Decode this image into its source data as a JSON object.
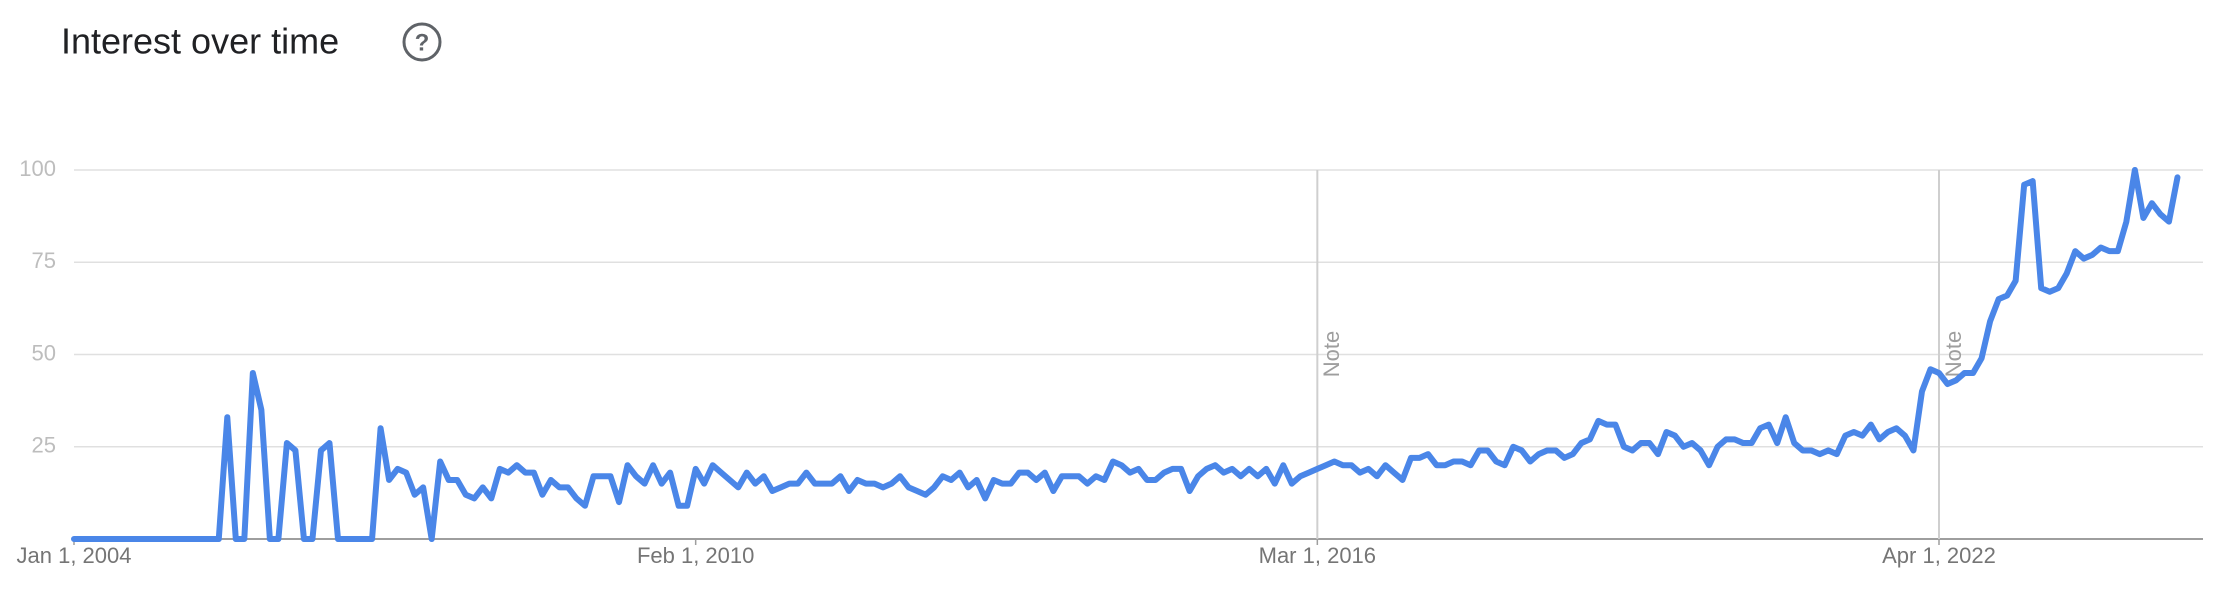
{
  "chart_data": {
    "type": "line",
    "title": "Interest over time",
    "color": "#4a86e8",
    "grid": true,
    "values": [
      0,
      0,
      0,
      0,
      0,
      0,
      0,
      0,
      0,
      0,
      0,
      0,
      0,
      0,
      0,
      0,
      0,
      0,
      33,
      0,
      0,
      45,
      35,
      0,
      0,
      26,
      24,
      0,
      0,
      24,
      26,
      0,
      0,
      0,
      0,
      0,
      30,
      16,
      19,
      18,
      12,
      14,
      0,
      21,
      16,
      16,
      12,
      11,
      14,
      11,
      19,
      18,
      20,
      18,
      18,
      12,
      16,
      14,
      14,
      11,
      9,
      17,
      17,
      17,
      10,
      20,
      17,
      15,
      20,
      15,
      18,
      9,
      9,
      19,
      15,
      20,
      18,
      16,
      14,
      18,
      15,
      17,
      13,
      14,
      15,
      15,
      18,
      15,
      15,
      15,
      17,
      13,
      16,
      15,
      15,
      14,
      15,
      17,
      14,
      13,
      12,
      14,
      17,
      16,
      18,
      14,
      16,
      11,
      16,
      15,
      15,
      18,
      18,
      16,
      18,
      13,
      17,
      17,
      17,
      15,
      17,
      16,
      21,
      20,
      18,
      19,
      16,
      16,
      18,
      19,
      19,
      13,
      17,
      19,
      20,
      18,
      19,
      17,
      19,
      17,
      19,
      15,
      20,
      15,
      17,
      18,
      19,
      20,
      21,
      20,
      20,
      18,
      19,
      17,
      20,
      18,
      16,
      22,
      22,
      23,
      20,
      20,
      21,
      21,
      20,
      24,
      24,
      21,
      20,
      25,
      24,
      21,
      23,
      24,
      24,
      22,
      23,
      26,
      27,
      32,
      31,
      31,
      25,
      24,
      26,
      26,
      23,
      29,
      28,
      25,
      26,
      24,
      20,
      25,
      27,
      27,
      26,
      26,
      30,
      31,
      26,
      33,
      26,
      24,
      24,
      23,
      24,
      23,
      28,
      29,
      28,
      31,
      27,
      29,
      30,
      28,
      24,
      40,
      46,
      45,
      42,
      43,
      45,
      45,
      49,
      59,
      65,
      66,
      70,
      96,
      97,
      68,
      67,
      68,
      72,
      78,
      76,
      77,
      79,
      78,
      78,
      86,
      100,
      87,
      91,
      88,
      86,
      98
    ],
    "xlim": [
      0,
      250
    ],
    "xticks": [
      {
        "value": 0,
        "label": "Jan 1, 2004"
      },
      {
        "value": 73,
        "label": "Feb 1, 2010"
      },
      {
        "value": 146,
        "label": "Mar 1, 2016"
      },
      {
        "value": 219,
        "label": "Apr 1, 2022"
      }
    ],
    "ylim": [
      0,
      100
    ],
    "yticks": [
      25,
      50,
      75,
      100
    ],
    "annotations": [
      {
        "x": 146,
        "label": "Note"
      },
      {
        "x": 219,
        "label": "Note"
      }
    ]
  }
}
